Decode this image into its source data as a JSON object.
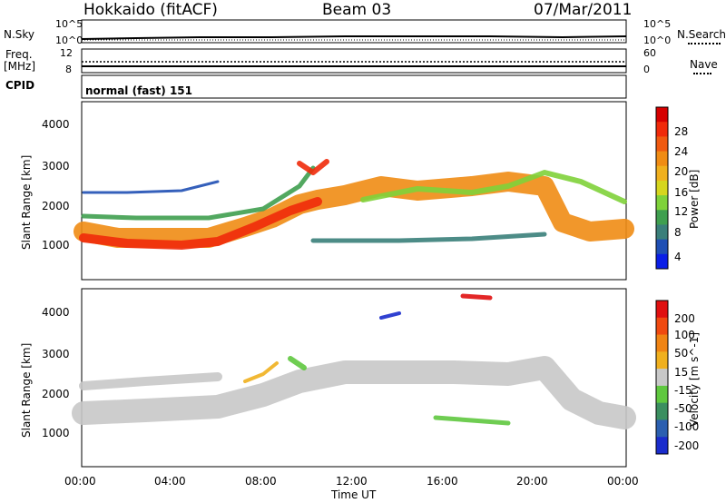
{
  "header": {
    "station": "Hokkaido (fitACF)",
    "beam": "Beam 03",
    "date": "07/Mar/2011"
  },
  "summary_panels": {
    "nsky_label": "N.Sky",
    "nsearch_label": "N.Search",
    "freq_label": "Freq.",
    "freq_unit": "[MHz]",
    "nave_label": "Nave",
    "cpid_label": "CPID",
    "cpid_value": "normal (fast) 151",
    "nsky_ticks": [
      "10^5",
      "10^0"
    ],
    "nsearch_ticks": [
      "10^5",
      "10^0"
    ],
    "freq_ticks": [
      "12",
      "8"
    ],
    "nave_ticks": [
      "60",
      "0"
    ]
  },
  "chart_data": [
    {
      "type": "heatmap",
      "name": "power",
      "ylabel": "Slant Range [km]",
      "xlabel": "Time UT",
      "x_ticks": [
        "00:00",
        "04:00",
        "08:00",
        "12:00",
        "16:00",
        "20:00",
        "00:00"
      ],
      "y_ticks": [
        "1000",
        "2000",
        "3000",
        "4000"
      ],
      "ylim": [
        180,
        4500
      ],
      "colorbar": {
        "label": "Power [dB]",
        "ticks": [
          "4",
          "8",
          "12",
          "16",
          "20",
          "24",
          "28"
        ],
        "colors": [
          "#0a1ee6",
          "#1f4fb4",
          "#3a7f7a",
          "#3f9f4f",
          "#7fd23a",
          "#d6d61e",
          "#f0b01e",
          "#f08c14",
          "#f05a10",
          "#f02a0a",
          "#d60000"
        ]
      }
    },
    {
      "type": "heatmap",
      "name": "velocity",
      "ylabel": "Slant Range [km]",
      "xlabel": "Time UT",
      "x_ticks": [
        "00:00",
        "04:00",
        "08:00",
        "12:00",
        "16:00",
        "20:00",
        "00:00"
      ],
      "y_ticks": [
        "1000",
        "2000",
        "3000",
        "4000"
      ],
      "ylim": [
        180,
        4500
      ],
      "colorbar": {
        "label": "Velocity [m s^-1]",
        "ticks": [
          "200",
          "100",
          "50",
          "15",
          "-15",
          "-50",
          "-100",
          "-200"
        ],
        "colors": [
          "#1a2ccc",
          "#2b5fb0",
          "#3b8f60",
          "#5fc83f",
          "#c8c8c8",
          "#f0b01e",
          "#f08414",
          "#f04a10",
          "#e01010"
        ]
      }
    }
  ]
}
